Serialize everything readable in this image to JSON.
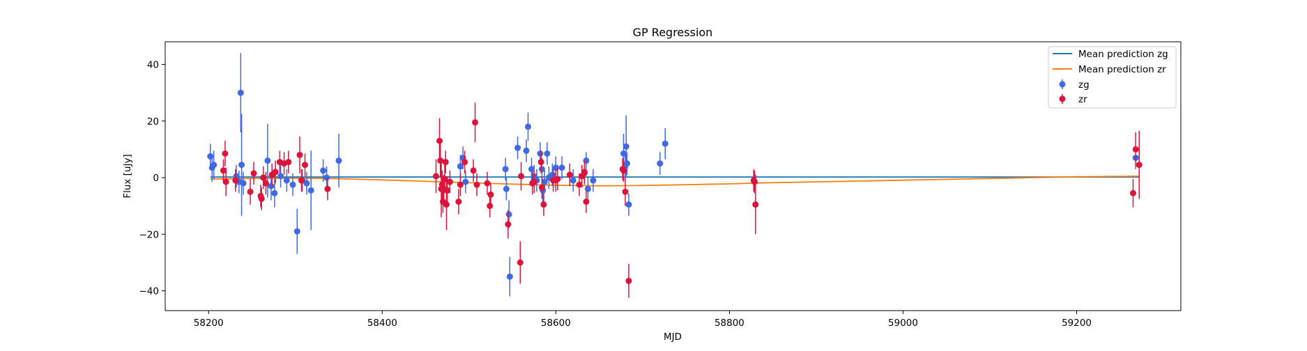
{
  "chart_data": {
    "type": "scatter",
    "title": "GP Regression",
    "xlabel": "MJD",
    "ylabel": "Flux [uJy]",
    "xlim": [
      58150,
      59320
    ],
    "ylim": [
      -47,
      48
    ],
    "x_ticks": [
      58200,
      58400,
      58600,
      58800,
      59000,
      59200
    ],
    "y_ticks": [
      -40,
      -20,
      0,
      20,
      40
    ],
    "grid": false,
    "legend_placement": "top-right",
    "legend": [
      "Mean prediction zg",
      "Mean prediction zr",
      "zg",
      "zr"
    ],
    "colors": {
      "zg_points": "#4169e1",
      "zr_points": "#dc143c",
      "zg_line": "#1f77b4",
      "zr_line": "#ff7f0e"
    },
    "series": [
      {
        "name": "zg",
        "kind": "errorbar",
        "points": [
          {
            "x": 58202,
            "y": 7.5,
            "err": 4.5
          },
          {
            "x": 58204,
            "y": 3.5,
            "err": 5
          },
          {
            "x": 58206,
            "y": 4.5,
            "err": 5
          },
          {
            "x": 58232,
            "y": 0.5,
            "err": 4
          },
          {
            "x": 58235,
            "y": -1.5,
            "err": 4
          },
          {
            "x": 58237,
            "y": 30,
            "err": 14
          },
          {
            "x": 58238,
            "y": 4.5,
            "err": 18
          },
          {
            "x": 58240,
            "y": -2,
            "err": 4
          },
          {
            "x": 58268,
            "y": 6,
            "err": 13
          },
          {
            "x": 58272,
            "y": -3,
            "err": 5
          },
          {
            "x": 58276,
            "y": -5.5,
            "err": 5
          },
          {
            "x": 58283,
            "y": 0.5,
            "err": 4
          },
          {
            "x": 58290,
            "y": -1,
            "err": 4
          },
          {
            "x": 58297,
            "y": -2.5,
            "err": 4
          },
          {
            "x": 58302,
            "y": -19,
            "err": 8
          },
          {
            "x": 58308,
            "y": -1,
            "err": 4
          },
          {
            "x": 58313,
            "y": -2,
            "err": 4
          },
          {
            "x": 58318,
            "y": -4.5,
            "err": 14
          },
          {
            "x": 58332,
            "y": 2.5,
            "err": 4
          },
          {
            "x": 58336,
            "y": 0,
            "err": 4
          },
          {
            "x": 58350,
            "y": 6,
            "err": 9.5
          },
          {
            "x": 58490,
            "y": 4,
            "err": 4
          },
          {
            "x": 58493,
            "y": 7,
            "err": 4
          },
          {
            "x": 58496,
            "y": -1.5,
            "err": 4
          },
          {
            "x": 58542,
            "y": 3,
            "err": 4
          },
          {
            "x": 58543,
            "y": -4,
            "err": 4
          },
          {
            "x": 58546,
            "y": -13,
            "err": 5
          },
          {
            "x": 58547,
            "y": -35,
            "err": 7
          },
          {
            "x": 58556,
            "y": 10.5,
            "err": 4
          },
          {
            "x": 58566,
            "y": 9.5,
            "err": 4
          },
          {
            "x": 58568,
            "y": 18,
            "err": 5
          },
          {
            "x": 58572,
            "y": 3,
            "err": 4
          },
          {
            "x": 58575,
            "y": 0.5,
            "err": 4
          },
          {
            "x": 58578,
            "y": -1,
            "err": 4
          },
          {
            "x": 58582,
            "y": 8.5,
            "err": 4
          },
          {
            "x": 58584,
            "y": 3,
            "err": 4
          },
          {
            "x": 58585,
            "y": -4.5,
            "err": 4
          },
          {
            "x": 58587,
            "y": -1.5,
            "err": 4
          },
          {
            "x": 58590,
            "y": 8.5,
            "err": 4
          },
          {
            "x": 58592,
            "y": 0,
            "err": 4
          },
          {
            "x": 58596,
            "y": 1,
            "err": 4
          },
          {
            "x": 58600,
            "y": 3.5,
            "err": 4
          },
          {
            "x": 58607,
            "y": 3.5,
            "err": 4
          },
          {
            "x": 58620,
            "y": -1,
            "err": 4
          },
          {
            "x": 58633,
            "y": 1.5,
            "err": 4
          },
          {
            "x": 58635,
            "y": 6,
            "err": 3
          },
          {
            "x": 58637,
            "y": -4,
            "err": 4
          },
          {
            "x": 58643,
            "y": -1,
            "err": 4
          },
          {
            "x": 58678,
            "y": 8.5,
            "err": 7
          },
          {
            "x": 58680,
            "y": 4,
            "err": 4
          },
          {
            "x": 58681,
            "y": 11,
            "err": 11
          },
          {
            "x": 58682,
            "y": 5,
            "err": 4
          },
          {
            "x": 58684,
            "y": -9.5,
            "err": 4
          },
          {
            "x": 58720,
            "y": 5,
            "err": 4
          },
          {
            "x": 58726,
            "y": 12,
            "err": 5.5
          },
          {
            "x": 59268,
            "y": 7,
            "err": 4
          }
        ]
      },
      {
        "name": "zr",
        "kind": "errorbar",
        "points": [
          {
            "x": 58217,
            "y": 2.5,
            "err": 4
          },
          {
            "x": 58219,
            "y": 8.5,
            "err": 4.5
          },
          {
            "x": 58220,
            "y": -1.5,
            "err": 5
          },
          {
            "x": 58231,
            "y": -1,
            "err": 4
          },
          {
            "x": 58248,
            "y": -5,
            "err": 4.5
          },
          {
            "x": 58252,
            "y": 1.5,
            "err": 4
          },
          {
            "x": 58260,
            "y": -6.5,
            "err": 4
          },
          {
            "x": 58261,
            "y": -7.5,
            "err": 4
          },
          {
            "x": 58263,
            "y": 0,
            "err": 4
          },
          {
            "x": 58266,
            "y": -2,
            "err": 4
          },
          {
            "x": 58273,
            "y": 1,
            "err": 4
          },
          {
            "x": 58277,
            "y": 2,
            "err": 4
          },
          {
            "x": 58282,
            "y": 5.5,
            "err": 4
          },
          {
            "x": 58287,
            "y": 5,
            "err": 4
          },
          {
            "x": 58292,
            "y": 5.5,
            "err": 4
          },
          {
            "x": 58305,
            "y": 8,
            "err": 6.5
          },
          {
            "x": 58307,
            "y": -1,
            "err": 4
          },
          {
            "x": 58311,
            "y": 4.5,
            "err": 4
          },
          {
            "x": 58337,
            "y": -4,
            "err": 4
          },
          {
            "x": 58462,
            "y": 0.5,
            "err": 6
          },
          {
            "x": 58466,
            "y": 13,
            "err": 8
          },
          {
            "x": 58467,
            "y": 6,
            "err": 6
          },
          {
            "x": 58468,
            "y": -4,
            "err": 10
          },
          {
            "x": 58469,
            "y": -2.5,
            "err": 5
          },
          {
            "x": 58470,
            "y": -8.5,
            "err": 4
          },
          {
            "x": 58471,
            "y": -4,
            "err": 5
          },
          {
            "x": 58472,
            "y": -0.5,
            "err": 5
          },
          {
            "x": 58473,
            "y": 5.5,
            "err": 4
          },
          {
            "x": 58474,
            "y": -9.5,
            "err": 9
          },
          {
            "x": 58475,
            "y": -4.5,
            "err": 5
          },
          {
            "x": 58478,
            "y": -1.5,
            "err": 4
          },
          {
            "x": 58488,
            "y": -8.5,
            "err": 4.5
          },
          {
            "x": 58490,
            "y": -2.5,
            "err": 4
          },
          {
            "x": 58495,
            "y": 5.5,
            "err": 4
          },
          {
            "x": 58505,
            "y": 2.5,
            "err": 4
          },
          {
            "x": 58507,
            "y": 19.5,
            "err": 7
          },
          {
            "x": 58509,
            "y": -2.5,
            "err": 4
          },
          {
            "x": 58521,
            "y": -2,
            "err": 4
          },
          {
            "x": 58524,
            "y": -10,
            "err": 4
          },
          {
            "x": 58525,
            "y": -6,
            "err": 4
          },
          {
            "x": 58545,
            "y": -16.5,
            "err": 5
          },
          {
            "x": 58559,
            "y": -30,
            "err": 7.5
          },
          {
            "x": 58560,
            "y": 0.5,
            "err": 5
          },
          {
            "x": 58573,
            "y": -2,
            "err": 4
          },
          {
            "x": 58575,
            "y": -1.5,
            "err": 4
          },
          {
            "x": 58583,
            "y": 5.5,
            "err": 4
          },
          {
            "x": 58584,
            "y": -3.5,
            "err": 4
          },
          {
            "x": 58586,
            "y": -9.5,
            "err": 4
          },
          {
            "x": 58597,
            "y": -1,
            "err": 4
          },
          {
            "x": 58600,
            "y": -1,
            "err": 4
          },
          {
            "x": 58602,
            "y": -0.5,
            "err": 4
          },
          {
            "x": 58616,
            "y": 1,
            "err": 4
          },
          {
            "x": 58627,
            "y": -2.5,
            "err": 4
          },
          {
            "x": 58630,
            "y": 0.5,
            "err": 4
          },
          {
            "x": 58633,
            "y": 2,
            "err": 4
          },
          {
            "x": 58635,
            "y": -8.5,
            "err": 4
          },
          {
            "x": 58677,
            "y": 3,
            "err": 4
          },
          {
            "x": 58678,
            "y": 2.5,
            "err": 4
          },
          {
            "x": 58680,
            "y": -5,
            "err": 5
          },
          {
            "x": 58684,
            "y": -36.5,
            "err": 6
          },
          {
            "x": 58828,
            "y": -1,
            "err": 4
          },
          {
            "x": 58829,
            "y": -1.5,
            "err": 4
          },
          {
            "x": 58830,
            "y": -9.5,
            "err": 10.5
          },
          {
            "x": 59265,
            "y": -5.5,
            "err": 5
          },
          {
            "x": 59268,
            "y": 10,
            "err": 6
          },
          {
            "x": 59272,
            "y": 4.5,
            "err": 12
          }
        ]
      },
      {
        "name": "Mean prediction zg",
        "kind": "line",
        "x": [
          58202,
          58350,
          58500,
          58700,
          58900,
          59100,
          59272
        ],
        "y": [
          0.2,
          0.2,
          0.2,
          0.2,
          0.2,
          0.2,
          0.2
        ]
      },
      {
        "name": "Mean prediction zr",
        "kind": "line",
        "x": [
          58202,
          58280,
          58340,
          58400,
          58470,
          58540,
          58600,
          58650,
          58700,
          58800,
          58830,
          58900,
          59000,
          59100,
          59200,
          59272
        ],
        "y": [
          -0.5,
          -0.2,
          -0.3,
          -0.8,
          -1.5,
          -2.2,
          -2.7,
          -2.9,
          -2.8,
          -2.2,
          -1.9,
          -1.5,
          -0.9,
          -0.3,
          0.3,
          0.5
        ]
      }
    ]
  }
}
